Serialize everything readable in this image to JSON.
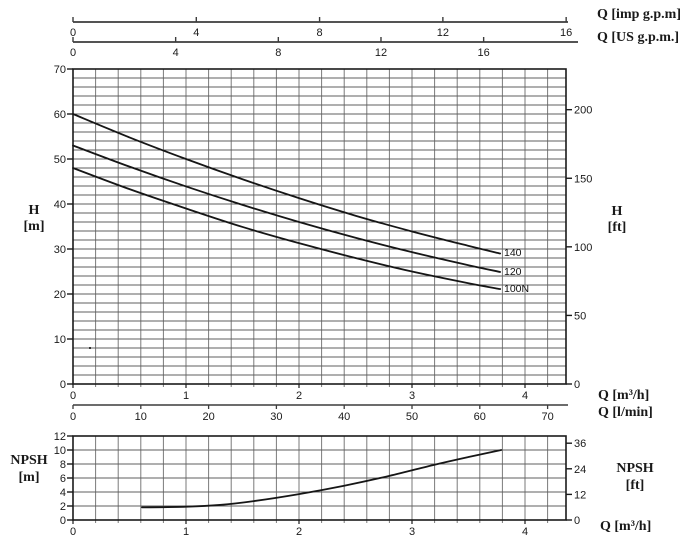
{
  "page": {
    "background": "#ffffff",
    "ink": "#1a1a1a",
    "grid_color_h": "#5f5f5f",
    "grid_color_v": "#7a7a7a"
  },
  "chart_data": [
    {
      "id": "head-flow-curve",
      "type": "line",
      "title": "",
      "xlabel_top_primary": "Q [imp g.p.m]",
      "xlabel_top_secondary": "Q [US g.p.m.]",
      "xlabel_bottom_primary": "Q [m³/h]",
      "xlabel_bottom_secondary": "Q [l/min]",
      "ylabel_left": [
        "H",
        "[m]"
      ],
      "ylabel_right": [
        "H",
        "[ft]"
      ],
      "x_range_m3h": [
        0,
        4.36
      ],
      "y_range_m": [
        0,
        70
      ],
      "grid": {
        "on": true,
        "x_minor_step_m3h": 0.2,
        "y_minor_step_m": 2
      },
      "x_ticks_m3h": [
        0,
        1,
        2,
        3,
        4
      ],
      "x_ticks_lmin": [
        0,
        10,
        20,
        30,
        40,
        50,
        60,
        70
      ],
      "x_ticks_imp_gpm": [
        0,
        4,
        8,
        12,
        16
      ],
      "x_ticks_us_gpm": [
        0,
        4,
        8,
        12,
        16
      ],
      "y_ticks_m": [
        0,
        10,
        20,
        30,
        40,
        50,
        60,
        70
      ],
      "y_ticks_ft": [
        0,
        50,
        100,
        150,
        200
      ],
      "legend_position": "end-of-curve",
      "series": [
        {
          "name": "140",
          "x": [
            0,
            0.5,
            1,
            1.5,
            2,
            2.5,
            3,
            3.5,
            3.78
          ],
          "y": [
            60,
            54.8,
            50.0,
            45.5,
            41.3,
            37.4,
            33.9,
            30.7,
            29.0
          ]
        },
        {
          "name": "120",
          "x": [
            0,
            0.5,
            1,
            1.5,
            2,
            2.5,
            3,
            3.5,
            3.78
          ],
          "y": [
            53,
            48.3,
            43.9,
            39.8,
            36.0,
            32.5,
            29.3,
            26.4,
            24.9
          ]
        },
        {
          "name": "100N",
          "x": [
            0,
            0.5,
            1,
            1.5,
            2,
            2.5,
            3,
            3.5,
            3.78
          ],
          "y": [
            48,
            43.3,
            39.0,
            34.9,
            31.3,
            28.0,
            25.0,
            22.4,
            21.1
          ]
        }
      ]
    },
    {
      "id": "npsh-curve",
      "type": "line",
      "title": "",
      "xlabel_bottom_primary": "Q [m³/h]",
      "ylabel_left": [
        "NPSH",
        "[m]"
      ],
      "ylabel_right": [
        "NPSH",
        "[ft]"
      ],
      "x_range_m3h": [
        0,
        4.36
      ],
      "y_range_m": [
        0,
        12
      ],
      "grid": {
        "on": true,
        "x_minor_step_m3h": 0.2,
        "y_minor_step_m": 2
      },
      "x_ticks_m3h": [
        0,
        1,
        2,
        3,
        4
      ],
      "y_ticks_m": [
        0,
        2,
        4,
        6,
        8,
        10,
        12
      ],
      "y_ticks_ft": [
        0,
        12,
        24,
        36
      ],
      "series": [
        {
          "name": "NPSH",
          "x": [
            0.61,
            1.0,
            1.3,
            1.6,
            2.0,
            2.4,
            2.8,
            3.2,
            3.5,
            3.79
          ],
          "y": [
            1.8,
            1.9,
            2.15,
            2.7,
            3.7,
            4.9,
            6.3,
            7.9,
            9.0,
            10.0
          ]
        }
      ]
    }
  ]
}
